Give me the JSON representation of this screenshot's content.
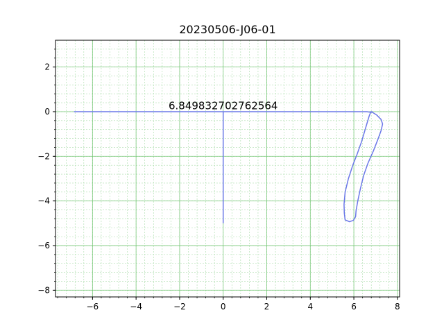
{
  "chart_data": {
    "type": "line",
    "title": "20230506-J06-01",
    "xlabel": "",
    "ylabel": "",
    "xlim": [
      -7.7,
      8.1
    ],
    "ylim": [
      -8.3,
      3.2
    ],
    "x_ticks": [
      -6,
      -4,
      -2,
      0,
      2,
      4,
      6,
      8
    ],
    "y_ticks": [
      2,
      0,
      -2,
      -4,
      -6,
      -8
    ],
    "x_tick_labels": [
      "−6",
      "−4",
      "−2",
      "0",
      "2",
      "4",
      "6",
      "8"
    ],
    "y_tick_labels": [
      "2",
      "0",
      "−2",
      "−4",
      "−6",
      "−8"
    ],
    "grid": true,
    "minor_grid": true,
    "annotations": [
      {
        "text": "6.849832702762564",
        "x": 0,
        "y": 0.05
      }
    ],
    "series": [
      {
        "color": "#6b78e8",
        "points": [
          [
            -6.85,
            0.0
          ],
          [
            6.6,
            0.0
          ],
          [
            6.72,
            -0.02
          ],
          [
            6.85,
            -0.03
          ],
          [
            7.05,
            -0.15
          ],
          [
            7.25,
            -0.35
          ],
          [
            7.32,
            -0.55
          ],
          [
            7.25,
            -0.85
          ],
          [
            7.1,
            -1.25
          ],
          [
            6.9,
            -1.75
          ],
          [
            6.65,
            -2.3
          ],
          [
            6.45,
            -2.85
          ],
          [
            6.3,
            -3.45
          ],
          [
            6.18,
            -4.0
          ],
          [
            6.1,
            -4.45
          ],
          [
            6.08,
            -4.7
          ],
          [
            5.98,
            -4.87
          ],
          [
            5.8,
            -4.93
          ],
          [
            5.6,
            -4.85
          ],
          [
            5.56,
            -4.55
          ],
          [
            5.55,
            -4.15
          ],
          [
            5.6,
            -3.6
          ],
          [
            5.75,
            -3.0
          ],
          [
            5.95,
            -2.4
          ],
          [
            6.15,
            -1.9
          ],
          [
            6.35,
            -1.35
          ],
          [
            6.55,
            -0.7
          ],
          [
            6.7,
            -0.2
          ],
          [
            6.78,
            0.0
          ],
          [
            6.85,
            0.0
          ]
        ]
      },
      {
        "color": "#6b78e8",
        "points": [
          [
            0,
            0
          ],
          [
            0,
            -5.0
          ]
        ]
      }
    ],
    "colors": {
      "major_grid": "#6fc46f",
      "minor_grid": "#a9dca9",
      "axis": "#000000"
    }
  }
}
